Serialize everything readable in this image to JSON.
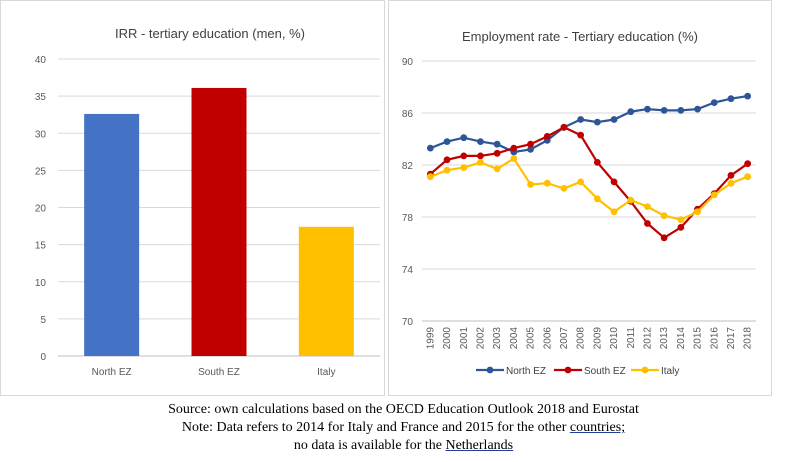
{
  "chart_data": [
    {
      "type": "bar",
      "title": "IRR - tertiary education (men, %)",
      "categories": [
        "North EZ",
        "South EZ",
        "Italy"
      ],
      "values": [
        32.6,
        36.1,
        17.4
      ],
      "colors": [
        "#4472c4",
        "#c00000",
        "#ffc000"
      ],
      "ylim": [
        0,
        40
      ],
      "yticks": [
        0,
        5,
        10,
        15,
        20,
        25,
        30,
        35,
        40
      ],
      "grid": true
    },
    {
      "type": "line",
      "title": "Employment rate - Tertiary education (%)",
      "x": [
        "1999",
        "2000",
        "2001",
        "2002",
        "2003",
        "2004",
        "2005",
        "2006",
        "2007",
        "2008",
        "2009",
        "2010",
        "2011",
        "2012",
        "2013",
        "2014",
        "2015",
        "2016",
        "2017",
        "2018"
      ],
      "ylim": [
        70,
        90
      ],
      "yticks": [
        70,
        74,
        78,
        82,
        86,
        90
      ],
      "grid": true,
      "legend": "bottom",
      "series": [
        {
          "name": "North EZ",
          "color": "#2e5597",
          "values": [
            83.3,
            83.8,
            84.1,
            83.8,
            83.6,
            83.0,
            83.2,
            83.9,
            84.9,
            85.5,
            85.3,
            85.5,
            86.1,
            86.3,
            86.2,
            86.2,
            86.3,
            86.8,
            87.1,
            87.3
          ]
        },
        {
          "name": "South EZ",
          "color": "#c00000",
          "values": [
            81.3,
            82.4,
            82.7,
            82.7,
            82.9,
            83.3,
            83.6,
            84.2,
            84.9,
            84.3,
            82.2,
            80.7,
            79.2,
            77.5,
            76.4,
            77.2,
            78.6,
            79.8,
            81.2,
            82.1
          ]
        },
        {
          "name": "Italy",
          "color": "#ffc000",
          "values": [
            81.1,
            81.6,
            81.8,
            82.2,
            81.7,
            82.5,
            80.5,
            80.6,
            80.2,
            80.7,
            79.4,
            78.4,
            79.3,
            78.8,
            78.1,
            77.8,
            78.4,
            79.7,
            80.6,
            81.1
          ]
        }
      ]
    }
  ],
  "caption": {
    "line1": "Source: own calculations based on the OECD Education Outlook 2018 and Eurostat",
    "line2a": "Note: Data refers to 2014 for Italy and France and 2015 for the other ",
    "line2b": "countries;",
    "line3a": "no data is available for the ",
    "line3b": "Netherlands"
  }
}
